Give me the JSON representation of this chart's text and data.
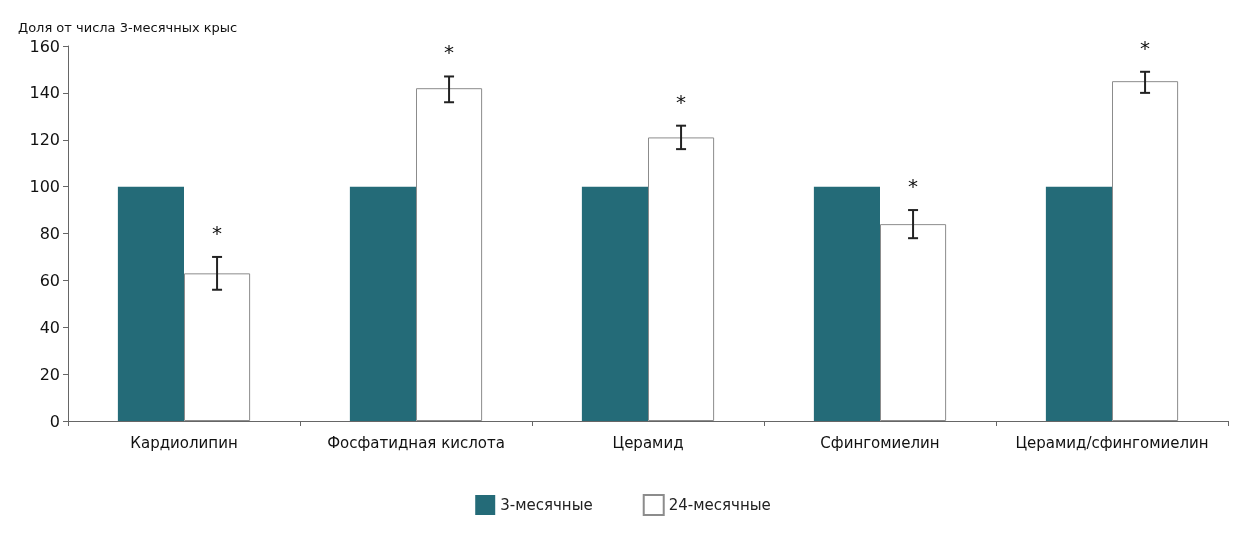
{
  "chart_data": {
    "type": "bar",
    "ylabel": "Доля от числа 3-месячных крыс",
    "categories": [
      "Кардиолипин",
      "Фосфатидная кислота",
      "Церамид",
      "Сфингомиелин",
      "Церамид/сфингомиелин"
    ],
    "series": [
      {
        "name": "3-месячные",
        "color": "#246b78",
        "values": [
          100,
          100,
          100,
          100,
          100
        ]
      },
      {
        "name": "24-месячные",
        "color": "#ffffff",
        "values": [
          63,
          142,
          121,
          84,
          145
        ],
        "errors": [
          [
            56,
            70
          ],
          [
            136,
            147
          ],
          [
            116,
            126
          ],
          [
            78,
            90
          ],
          [
            140,
            149
          ]
        ]
      }
    ],
    "ylim": [
      0,
      160
    ],
    "yticks": [
      0,
      20,
      40,
      60,
      80,
      100,
      120,
      140,
      160
    ],
    "grid": false,
    "legend": "bottom",
    "annotations": [
      "*",
      "*",
      "*",
      "*",
      "*"
    ]
  }
}
